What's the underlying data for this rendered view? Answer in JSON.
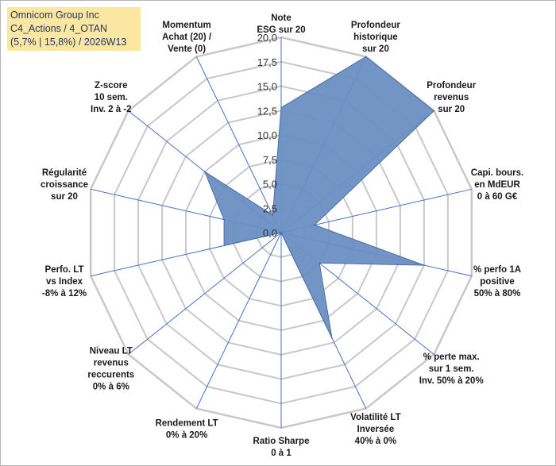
{
  "info_box": {
    "line1": "Omnicom Group Inc",
    "line2": "C4_Actions / 4_OTAN",
    "line3": "(5,7% | 15,8%) / 2026W13",
    "background": "#fbe6a2",
    "text_color": "#1f3864"
  },
  "chart_data": {
    "type": "radar",
    "title": "",
    "range": [
      0,
      20
    ],
    "tick_step": 2.5,
    "tick_labels": [
      "0,0",
      "2,5",
      "5,0",
      "7,5",
      "10,0",
      "12,5",
      "15,0",
      "17,5",
      "20,0"
    ],
    "grid": true,
    "fill_color": "#6a8fc2",
    "axis_color": "#4472c4",
    "grid_color": "#c8c8c8",
    "axes": [
      {
        "lines": [
          "Note",
          "ESG sur 20"
        ],
        "value": 12.8
      },
      {
        "lines": [
          "Profondeur",
          "historique",
          "sur 20"
        ],
        "value": 20.0
      },
      {
        "lines": [
          "Profondeur",
          "revenus",
          "sur 20"
        ],
        "value": 20.0
      },
      {
        "lines": [
          "Capi. bours.",
          "en MdEUR",
          "0 à 60 G€"
        ],
        "value": 3.5
      },
      {
        "lines": [
          "% perfo 1A",
          "positive",
          "50% à 80%"
        ],
        "value": 15.0
      },
      {
        "lines": [
          "% perte max.",
          "sur 1 sem.",
          "Inv. 50% à 20%"
        ],
        "value": 5.0
      },
      {
        "lines": [
          "Volatilité LT",
          "Inversée",
          "40% à 0%"
        ],
        "value": 12.0
      },
      {
        "lines": [
          "Ratio Sharpe",
          "0 à 1"
        ],
        "value": 0.0
      },
      {
        "lines": [
          "Rendement LT",
          "0% à 20%"
        ],
        "value": 0.0
      },
      {
        "lines": [
          "Niveau LT",
          "revenus",
          "reccurents",
          "0% à 6%"
        ],
        "value": 0.0
      },
      {
        "lines": [
          "Perfo. LT",
          "vs Index",
          "-8% à 12%"
        ],
        "value": 6.0
      },
      {
        "lines": [
          "Régularité",
          "croissance",
          "sur 20"
        ],
        "value": 6.0
      },
      {
        "lines": [
          "Z-score",
          "10 sem.",
          "Inv. 2 à -2"
        ],
        "value": 10.0
      },
      {
        "lines": [
          "Momentum",
          "Achat (20) /",
          "Vente (0)"
        ],
        "value": 2.0
      }
    ]
  }
}
